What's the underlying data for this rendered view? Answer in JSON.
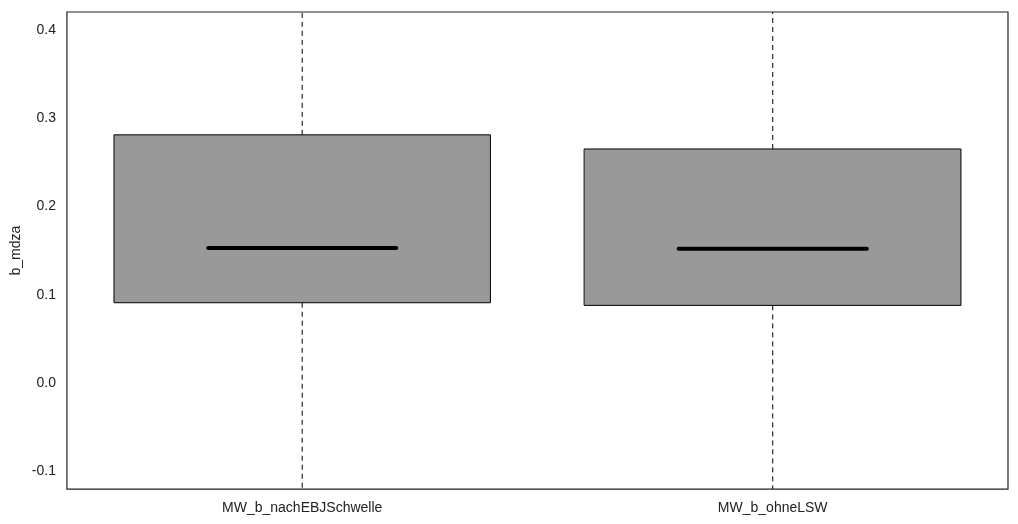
{
  "chart_data": {
    "type": "box",
    "ylabel": "b_mdza",
    "categories": [
      "MW_b_nachEBJSchwelle",
      "MW_b_ohneLSW"
    ],
    "color": "#999999",
    "boxes": [
      {
        "low": -0.12,
        "q1": 0.091,
        "median": 0.153,
        "q3": 0.281,
        "high": 0.42
      },
      {
        "low": -0.12,
        "q1": 0.088,
        "median": 0.152,
        "q3": 0.265,
        "high": 0.42
      }
    ],
    "ylim": [
      -0.12,
      0.42
    ],
    "yticks": [
      -0.1,
      {
        "value": 0,
        "label": "0.0"
      },
      0.1,
      0.2,
      0.3,
      0.4
    ],
    "grid": false,
    "legend": false
  }
}
